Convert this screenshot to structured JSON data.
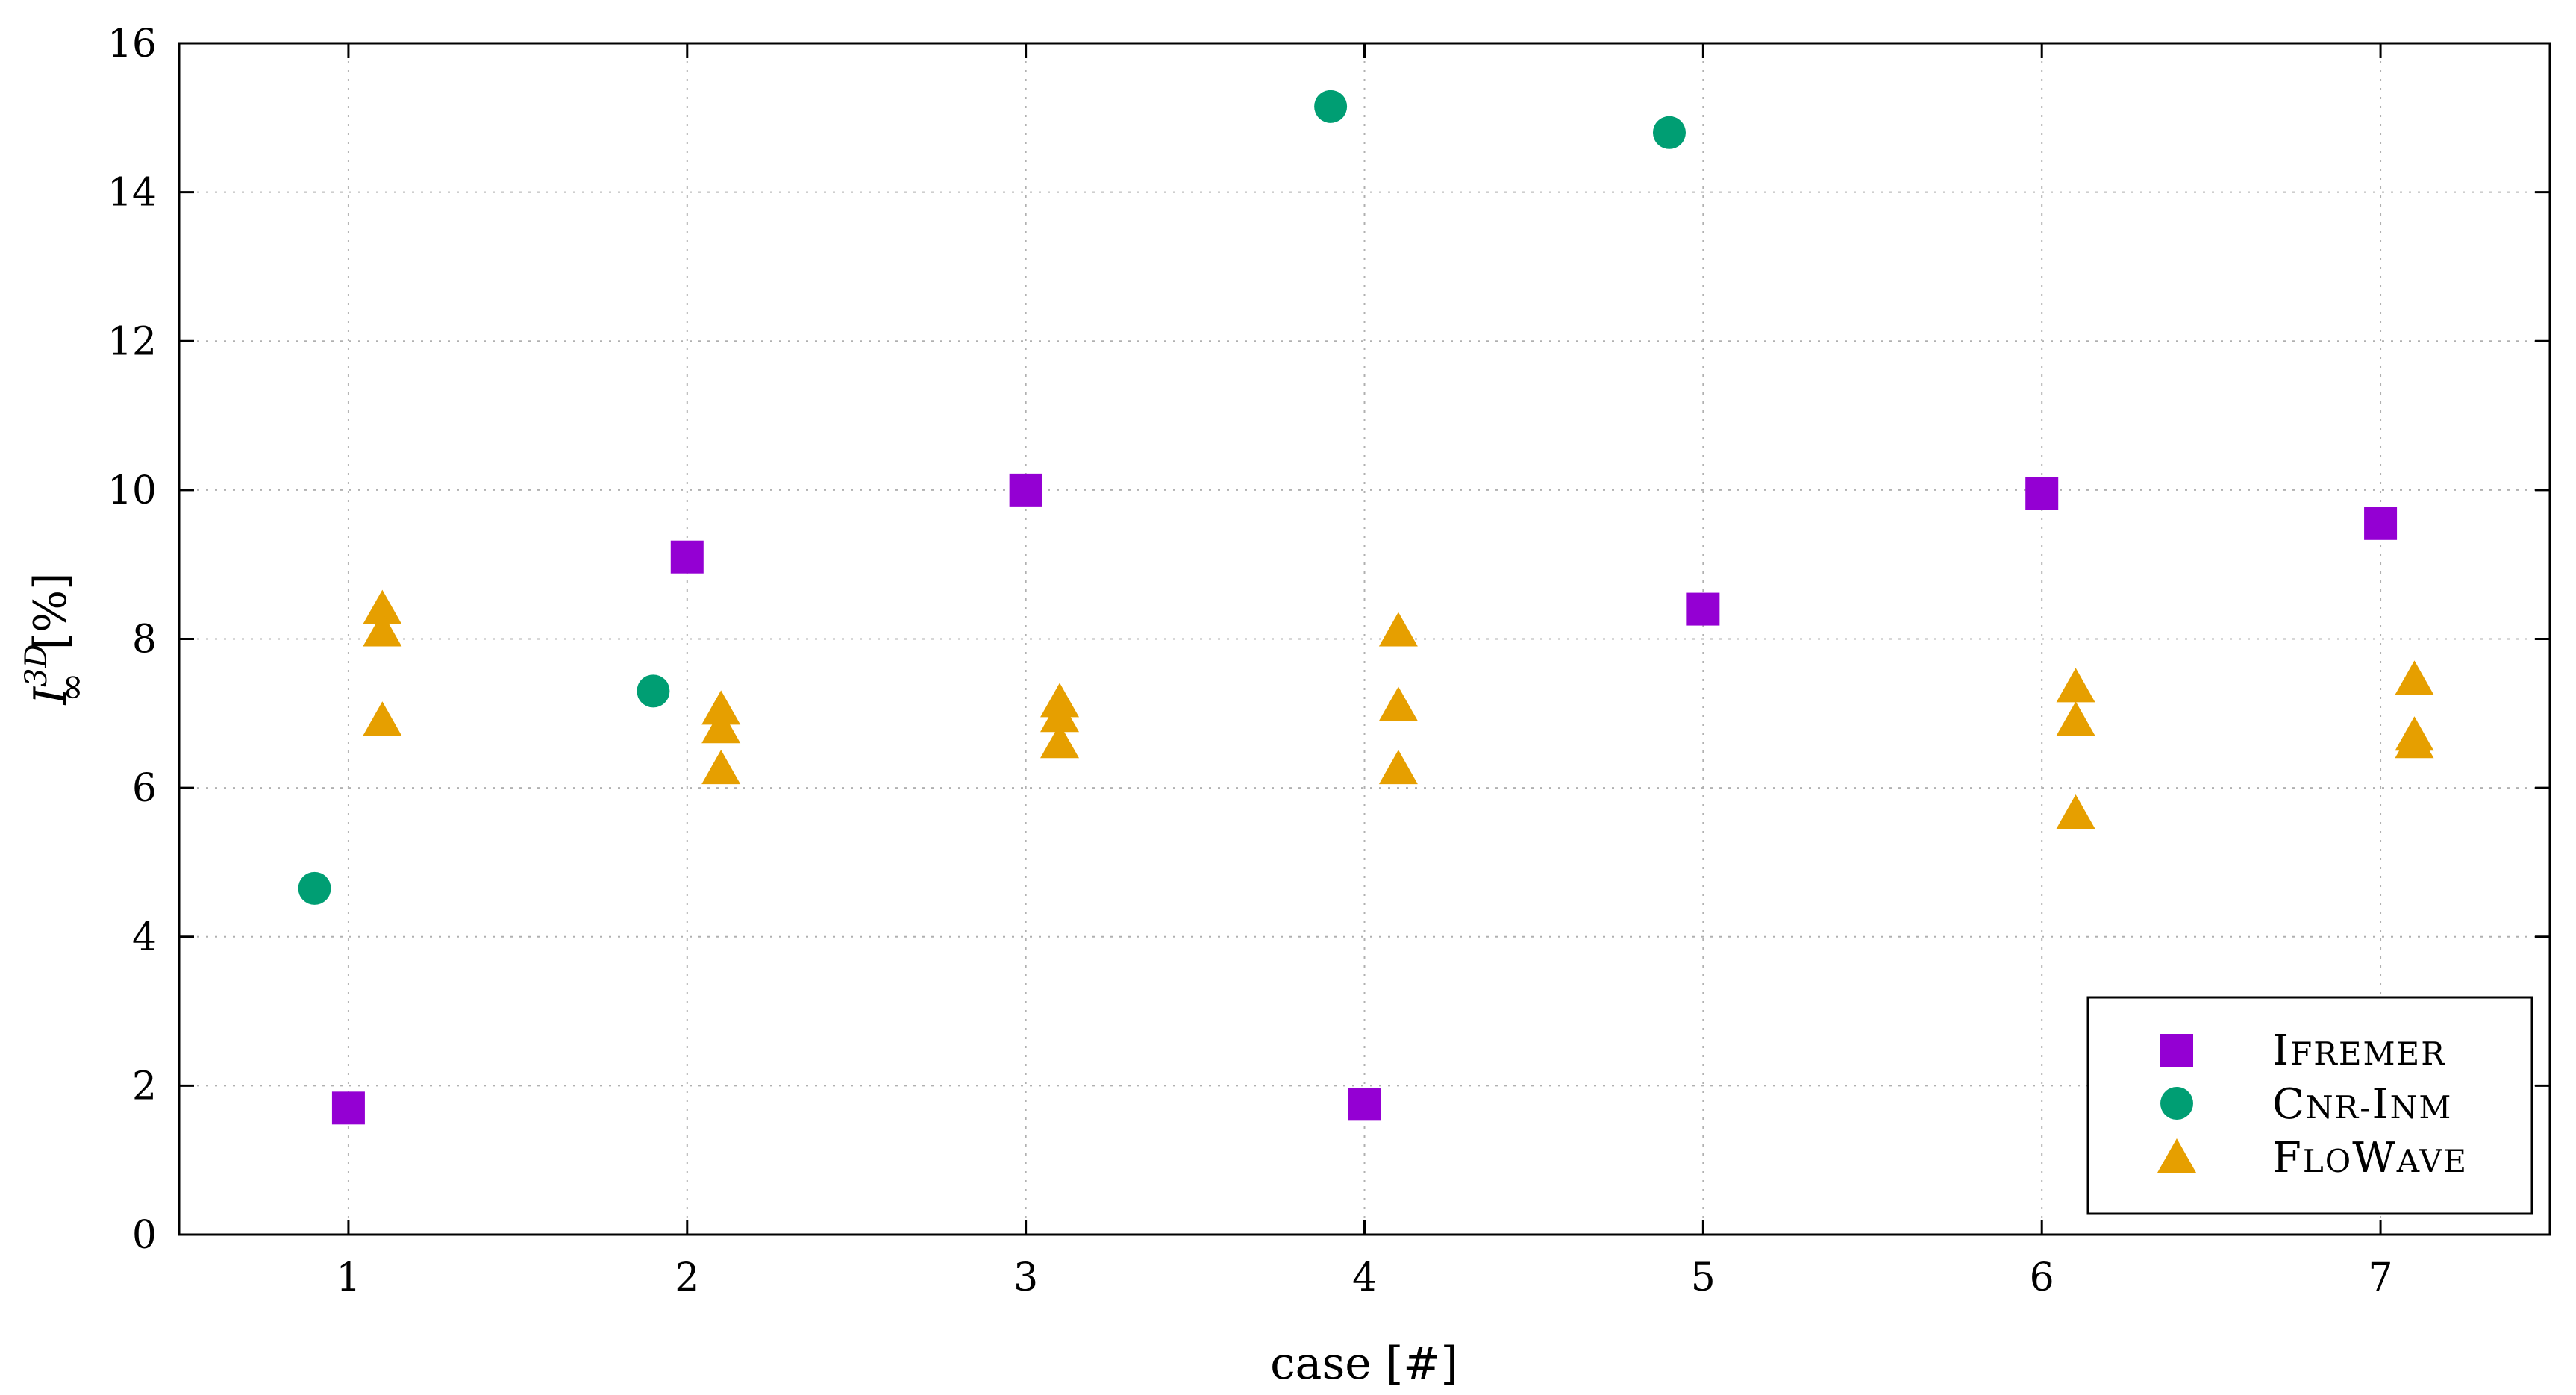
{
  "chart_data": {
    "type": "scatter",
    "title": "",
    "xlabel": "case [#]",
    "ylabel": {
      "base": "I",
      "sup": "3D",
      "sub": "∞",
      "unit": "[%]"
    },
    "xlim": [
      0.5,
      7.5
    ],
    "ylim": [
      0,
      16
    ],
    "xticks": [
      1,
      2,
      3,
      4,
      5,
      6,
      7
    ],
    "yticks": [
      0,
      2,
      4,
      6,
      8,
      10,
      12,
      14,
      16
    ],
    "grid": true,
    "legend_position": "bottom-right",
    "series": [
      {
        "name": "Ifremer",
        "legend_text": {
          "first": "I",
          "rest": "FREMER"
        },
        "marker": "square",
        "color": "#9400d3",
        "points": [
          [
            1,
            1.7
          ],
          [
            2,
            9.1
          ],
          [
            3,
            10.0
          ],
          [
            4,
            1.75
          ],
          [
            5,
            8.4
          ],
          [
            6,
            9.95
          ],
          [
            7,
            9.55
          ]
        ]
      },
      {
        "name": "Cnr-Inm",
        "legend_text": {
          "first": "C",
          "rest": "NR-",
          "first2": "I",
          "rest2": "NM"
        },
        "marker": "circle",
        "color": "#009e73",
        "points": [
          [
            0.9,
            4.65
          ],
          [
            1.9,
            7.3
          ],
          [
            3.9,
            15.15
          ],
          [
            4.9,
            14.8
          ]
        ]
      },
      {
        "name": "FloWave",
        "legend_text": {
          "first": "F",
          "rest": "LO",
          "first2": "W",
          "rest2": "AVE"
        },
        "marker": "triangle",
        "color": "#e69f00",
        "points": [
          [
            1.1,
            8.4
          ],
          [
            1.1,
            8.1
          ],
          [
            1.1,
            6.9
          ],
          [
            2.1,
            7.05
          ],
          [
            2.1,
            6.8
          ],
          [
            2.1,
            6.25
          ],
          [
            3.1,
            7.15
          ],
          [
            3.1,
            6.95
          ],
          [
            3.1,
            6.6
          ],
          [
            4.1,
            8.1
          ],
          [
            4.1,
            7.1
          ],
          [
            4.1,
            6.25
          ],
          [
            6.1,
            7.35
          ],
          [
            6.1,
            6.9
          ],
          [
            6.1,
            5.65
          ],
          [
            7.1,
            7.45
          ],
          [
            7.1,
            6.7
          ],
          [
            7.1,
            6.6
          ]
        ]
      }
    ]
  }
}
